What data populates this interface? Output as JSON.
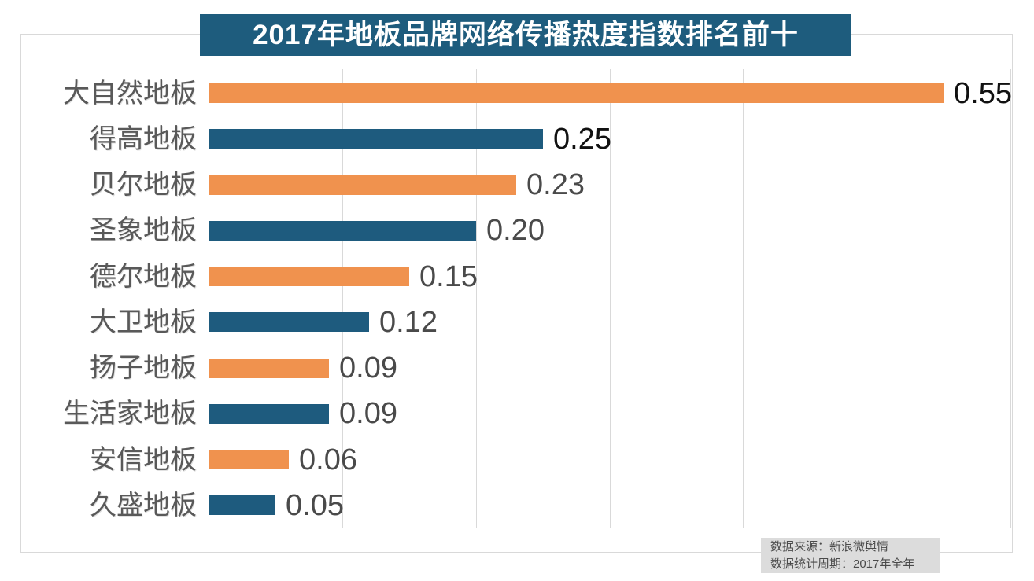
{
  "chart_data": {
    "type": "bar",
    "orientation": "horizontal",
    "title": "2017年地板品牌网络传播热度指数排名前十",
    "categories": [
      "大自然地板",
      "得高地板",
      "贝尔地板",
      "圣象地板",
      "德尔地板",
      "大卫地板",
      "扬子地板",
      "生活家地板",
      "安信地板",
      "久盛地板"
    ],
    "values": [
      0.55,
      0.25,
      0.23,
      0.2,
      0.15,
      0.12,
      0.09,
      0.09,
      0.06,
      0.05
    ],
    "value_labels": [
      "0.55",
      "0.25",
      "0.23",
      "0.20",
      "0.15",
      "0.12",
      "0.09",
      "0.09",
      "0.06",
      "0.05"
    ],
    "xlim": [
      0,
      0.6
    ],
    "gridline_interval": 0.1,
    "grid_on": true,
    "legend": "none",
    "xlabel": "",
    "ylabel": "",
    "colors": {
      "bar_odd_rows": "#F0924E",
      "bar_even_rows": "#1E5B7E",
      "gridline": "#D9D9D9",
      "outer_border": "#D9D9D9",
      "category_label": "#595959",
      "value_label_default": "#4A4A4A",
      "value_label_emphasis": "#111111",
      "title_background": "#1E5C7D",
      "title_text": "#FFFFFF",
      "source_background": "#DCDCDC",
      "source_text": "#4A4A4A"
    },
    "value_label_emphasized_rows": [
      0,
      1
    ]
  },
  "source_note": {
    "line1": "数据来源：新浪微舆情",
    "line2": "数据统计周期：2017年全年"
  }
}
